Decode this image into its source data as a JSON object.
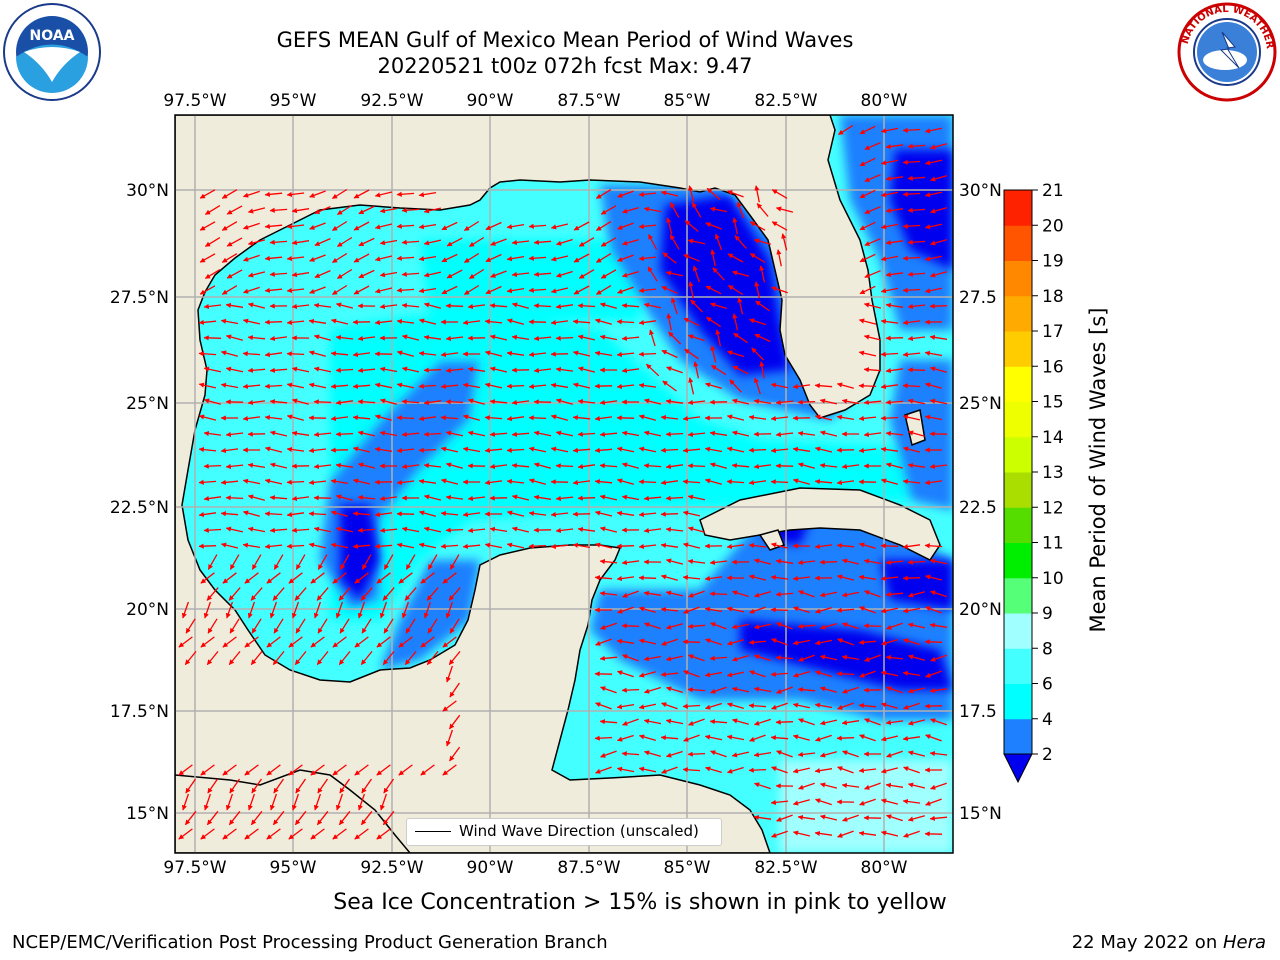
{
  "title": {
    "line1": "GEFS MEAN Gulf of Mexico Mean Period of Wind Waves",
    "line2": "20220521 t00z 072h fcst   Max: 9.47"
  },
  "map": {
    "lon_labels": [
      "97.5°W",
      "95°W",
      "92.5°W",
      "90°W",
      "87.5°W",
      "85°W",
      "82.5°W",
      "80°W"
    ],
    "lat_labels_left": [
      "30°N",
      "27.5°N",
      "25°N",
      "22.5°N",
      "20°N",
      "17.5°N",
      "15°N"
    ],
    "lat_labels_right": [
      "30°N",
      "27.5",
      "25°N",
      "22.5",
      "20°N",
      "17.5",
      "15°N"
    ],
    "lon_range": [
      -98,
      -78.2
    ],
    "lat_range": [
      14,
      31.8
    ],
    "grid": true,
    "land_color": "#efecdc",
    "vector_color": "#ff0000"
  },
  "legend": {
    "label": "Wind Wave Direction (unscaled)"
  },
  "colorbar": {
    "label": "Mean Period of Wind Waves [s]",
    "ticks": [
      "2",
      "4",
      "6",
      "8",
      "9",
      "10",
      "11",
      "12",
      "13",
      "14",
      "15",
      "16",
      "17",
      "18",
      "19",
      "20",
      "21"
    ],
    "colors": [
      "#0000ee",
      "#1e80ff",
      "#00ffff",
      "#44ffff",
      "#a0ffff",
      "#55ff77",
      "#00ee00",
      "#55dd00",
      "#aadd00",
      "#ccff00",
      "#eeff00",
      "#ffff00",
      "#ffcc00",
      "#ffaa00",
      "#ff8800",
      "#ff5500",
      "#ff2200",
      "#ff0000"
    ]
  },
  "note": "Sea Ice Concentration > 15% is shown in pink to yellow",
  "footer": {
    "left": "NCEP/EMC/Verification Post Processing Product Generation Branch",
    "right_text": "22 May 2022 on ",
    "right_machine": "Hera"
  },
  "logos": {
    "left": "noaa-logo",
    "right": "nws-logo"
  }
}
